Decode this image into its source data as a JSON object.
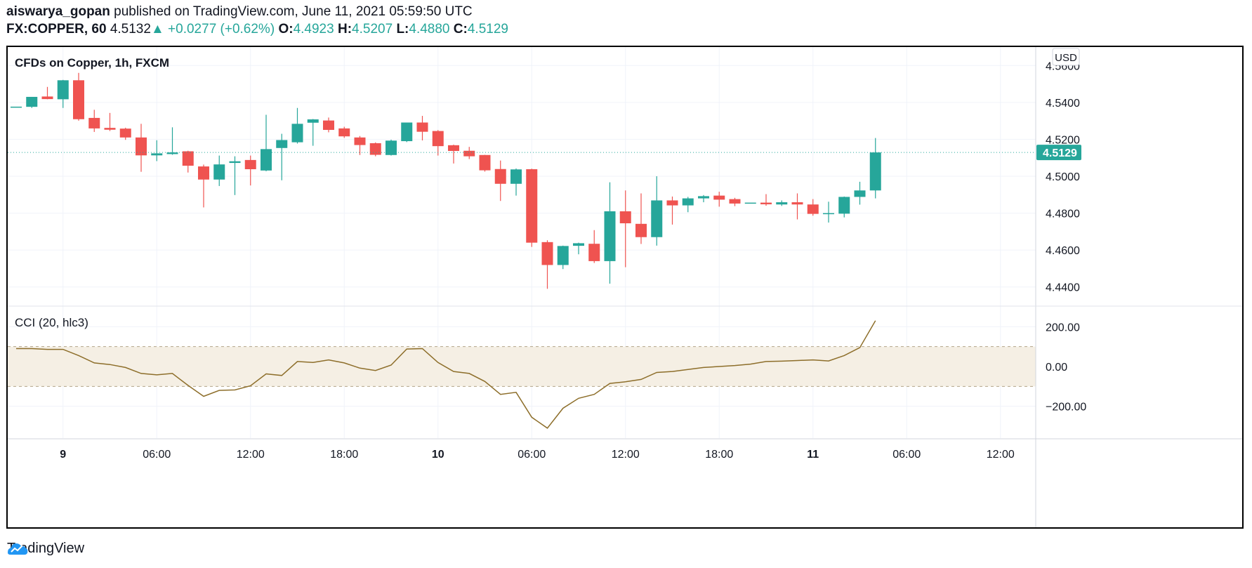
{
  "header": {
    "author": "aiswarya_gopan",
    "published_text": "published on TradingView.com, June 11, 2021 05:59:50 UTC",
    "symbol": "FX:COPPER, 60",
    "last": "4.5132",
    "change_arrow": "▲",
    "change": "+0.0277 (+0.62%)",
    "o_label": "O:",
    "o_val": "4.4923",
    "h_label": "H:",
    "h_val": "4.5207",
    "l_label": "L:",
    "l_val": "4.4880",
    "c_label": "C:",
    "c_val": "4.5129"
  },
  "footer": {
    "brand": "TradingView",
    "logo_icon": "tradingview-logo-icon"
  },
  "colors": {
    "up": "#26a69a",
    "down": "#ef5350",
    "cci_line": "#8d6e2a",
    "cci_band": "#f5efe4"
  },
  "chart_data": [
    {
      "type": "candlestick",
      "title": "CFDs on Copper, 1h, FXCM",
      "currency_badge": "USD",
      "last_price_label": "4.5129",
      "last_price": 4.5129,
      "ylim": [
        4.43,
        4.57
      ],
      "y_ticks": [
        "4.5600",
        "4.5400",
        "4.5200",
        "4.5000",
        "4.4800",
        "4.4600",
        "4.4400"
      ],
      "x_tick_labels": [
        "9",
        "06:00",
        "12:00",
        "18:00",
        "10",
        "06:00",
        "12:00",
        "18:00",
        "11",
        "06:00",
        "12:00"
      ],
      "x_tick_bold": [
        true,
        false,
        false,
        false,
        true,
        false,
        false,
        false,
        true,
        false,
        false
      ],
      "candles": [
        {
          "o": 4.5377,
          "h": 4.5377,
          "l": 4.5377,
          "c": 4.5377
        },
        {
          "o": 4.5376,
          "h": 4.543,
          "l": 4.537,
          "c": 4.543
        },
        {
          "o": 4.5432,
          "h": 4.5484,
          "l": 4.5417,
          "c": 4.5418
        },
        {
          "o": 4.5417,
          "h": 4.5522,
          "l": 4.537,
          "c": 4.552
        },
        {
          "o": 4.552,
          "h": 4.556,
          "l": 4.5301,
          "c": 4.5309
        },
        {
          "o": 4.5316,
          "h": 4.536,
          "l": 4.524,
          "c": 4.5259
        },
        {
          "o": 4.5262,
          "h": 4.5343,
          "l": 4.5245,
          "c": 4.5252
        },
        {
          "o": 4.5258,
          "h": 4.5263,
          "l": 4.5197,
          "c": 4.521
        },
        {
          "o": 4.521,
          "h": 4.5284,
          "l": 4.5024,
          "c": 4.5113
        },
        {
          "o": 4.5113,
          "h": 4.5195,
          "l": 4.5082,
          "c": 4.5124
        },
        {
          "o": 4.512,
          "h": 4.5265,
          "l": 4.5116,
          "c": 4.5129
        },
        {
          "o": 4.5135,
          "h": 4.5138,
          "l": 4.502,
          "c": 4.5057
        },
        {
          "o": 4.5053,
          "h": 4.5063,
          "l": 4.4831,
          "c": 4.4982
        },
        {
          "o": 4.4982,
          "h": 4.5112,
          "l": 4.4947,
          "c": 4.5064
        },
        {
          "o": 4.5072,
          "h": 4.5108,
          "l": 4.4898,
          "c": 4.5081
        },
        {
          "o": 4.5088,
          "h": 4.5112,
          "l": 4.495,
          "c": 4.5038
        },
        {
          "o": 4.5031,
          "h": 4.5333,
          "l": 4.5027,
          "c": 4.5147
        },
        {
          "o": 4.5153,
          "h": 4.523,
          "l": 4.4978,
          "c": 4.5196
        },
        {
          "o": 4.5184,
          "h": 4.537,
          "l": 4.5177,
          "c": 4.5284
        },
        {
          "o": 4.529,
          "h": 4.531,
          "l": 4.5165,
          "c": 4.5308
        },
        {
          "o": 4.5302,
          "h": 4.5318,
          "l": 4.5238,
          "c": 4.5251
        },
        {
          "o": 4.5259,
          "h": 4.5268,
          "l": 4.5208,
          "c": 4.5216
        },
        {
          "o": 4.521,
          "h": 4.5218,
          "l": 4.5115,
          "c": 4.5169
        },
        {
          "o": 4.5179,
          "h": 4.5183,
          "l": 4.5108,
          "c": 4.5116
        },
        {
          "o": 4.5115,
          "h": 4.5198,
          "l": 4.5112,
          "c": 4.5193
        },
        {
          "o": 4.519,
          "h": 4.529,
          "l": 4.5185,
          "c": 4.5291
        },
        {
          "o": 4.5291,
          "h": 4.5327,
          "l": 4.5194,
          "c": 4.5241
        },
        {
          "o": 4.5245,
          "h": 4.525,
          "l": 4.5112,
          "c": 4.5163
        },
        {
          "o": 4.5168,
          "h": 4.5171,
          "l": 4.5069,
          "c": 4.5137
        },
        {
          "o": 4.5138,
          "h": 4.5159,
          "l": 4.5093,
          "c": 4.5108
        },
        {
          "o": 4.5115,
          "h": 4.5116,
          "l": 4.5025,
          "c": 4.5032
        },
        {
          "o": 4.5039,
          "h": 4.5085,
          "l": 4.4866,
          "c": 4.4959
        },
        {
          "o": 4.4959,
          "h": 4.5042,
          "l": 4.4895,
          "c": 4.5037
        },
        {
          "o": 4.5038,
          "h": 4.5041,
          "l": 4.4617,
          "c": 4.464
        },
        {
          "o": 4.4643,
          "h": 4.4653,
          "l": 4.439,
          "c": 4.4519
        },
        {
          "o": 4.4519,
          "h": 4.4624,
          "l": 4.4497,
          "c": 4.4622
        },
        {
          "o": 4.4623,
          "h": 4.464,
          "l": 4.4577,
          "c": 4.4637
        },
        {
          "o": 4.4634,
          "h": 4.4708,
          "l": 4.453,
          "c": 4.454
        },
        {
          "o": 4.454,
          "h": 4.4967,
          "l": 4.4418,
          "c": 4.481
        },
        {
          "o": 4.481,
          "h": 4.4923,
          "l": 4.4507,
          "c": 4.4745
        },
        {
          "o": 4.4742,
          "h": 4.4907,
          "l": 4.4633,
          "c": 4.467
        },
        {
          "o": 4.467,
          "h": 4.5,
          "l": 4.4624,
          "c": 4.4869
        },
        {
          "o": 4.4869,
          "h": 4.489,
          "l": 4.4738,
          "c": 4.4842
        },
        {
          "o": 4.4842,
          "h": 4.4888,
          "l": 4.4805,
          "c": 4.488
        },
        {
          "o": 4.488,
          "h": 4.4898,
          "l": 4.4859,
          "c": 4.4892
        },
        {
          "o": 4.4895,
          "h": 4.4916,
          "l": 4.4835,
          "c": 4.4873
        },
        {
          "o": 4.4876,
          "h": 4.4883,
          "l": 4.4838,
          "c": 4.4852
        },
        {
          "o": 4.4857,
          "h": 4.4857,
          "l": 4.4857,
          "c": 4.4857
        },
        {
          "o": 4.4857,
          "h": 4.4903,
          "l": 4.484,
          "c": 4.4848
        },
        {
          "o": 4.4847,
          "h": 4.4869,
          "l": 4.4839,
          "c": 4.4859
        },
        {
          "o": 4.4859,
          "h": 4.4907,
          "l": 4.4766,
          "c": 4.4847
        },
        {
          "o": 4.4847,
          "h": 4.4876,
          "l": 4.4786,
          "c": 4.4796
        },
        {
          "o": 4.4797,
          "h": 4.4862,
          "l": 4.4749,
          "c": 4.48
        },
        {
          "o": 4.4797,
          "h": 4.489,
          "l": 4.4777,
          "c": 4.4888
        },
        {
          "o": 4.4888,
          "h": 4.497,
          "l": 4.4846,
          "c": 4.4923
        },
        {
          "o": 4.4923,
          "h": 4.5207,
          "l": 4.488,
          "c": 4.5129
        }
      ]
    },
    {
      "type": "line",
      "title": "CCI (20, hlc3)",
      "ylim": [
        -360,
        300
      ],
      "y_ticks": [
        "200.00",
        "0.00",
        "−200.00"
      ],
      "band": [
        -100,
        100
      ],
      "values": [
        90,
        90,
        86,
        86,
        55,
        18,
        10,
        -5,
        -35,
        -42,
        -35,
        -95,
        -150,
        -120,
        -118,
        -97,
        -37,
        -45,
        25,
        20,
        33,
        18,
        -8,
        -20,
        7,
        88,
        90,
        20,
        -25,
        -35,
        -75,
        -140,
        -130,
        -255,
        -310,
        -210,
        -160,
        -140,
        -85,
        -77,
        -65,
        -30,
        -25,
        -15,
        -5,
        0,
        5,
        12,
        25,
        27,
        30,
        33,
        28,
        55,
        95,
        230
      ]
    }
  ]
}
